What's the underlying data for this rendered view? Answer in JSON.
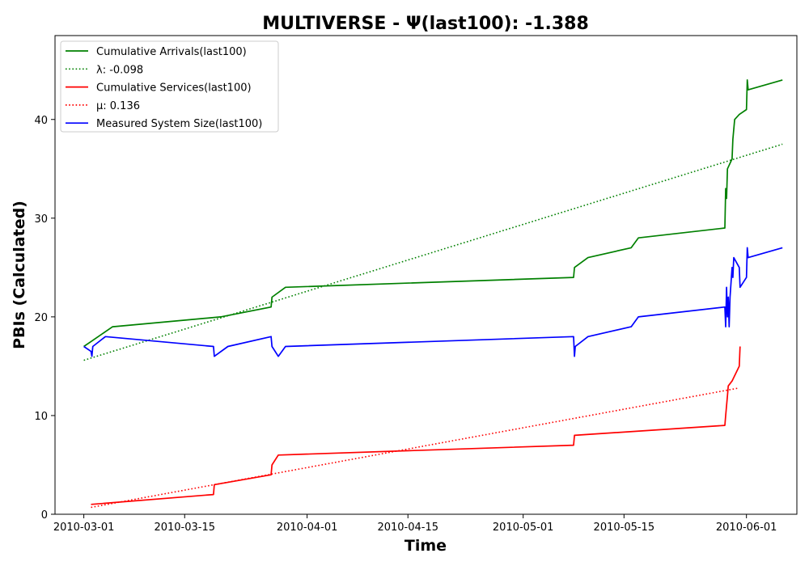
{
  "chart_data": {
    "type": "line",
    "title": "MULTIVERSE -  Ψ(last100): -1.388",
    "xlabel": "Time",
    "ylabel": "PBIs (Calculated)",
    "x_type": "date",
    "xlim": [
      "2010-02-25",
      "2010-06-08"
    ],
    "ylim": [
      0,
      48.5
    ],
    "x_ticks": [
      "2010-03-01",
      "2010-03-15",
      "2010-04-01",
      "2010-04-15",
      "2010-05-01",
      "2010-05-15",
      "2010-06-01"
    ],
    "y_ticks": [
      0,
      10,
      20,
      30,
      40
    ],
    "grid": false,
    "legend_position": "top-left",
    "series": [
      {
        "name": "Cumulative Arrivals(last100)",
        "color": "#008000",
        "style": "solid",
        "points": [
          [
            "2010-03-01",
            17
          ],
          [
            "2010-03-02",
            17.5
          ],
          [
            "2010-03-03",
            18
          ],
          [
            "2010-03-04",
            18.5
          ],
          [
            "2010-03-05",
            19
          ],
          [
            "2010-03-20",
            20
          ],
          [
            "2010-03-27",
            21
          ],
          [
            "2010-03-27",
            22
          ],
          [
            "2010-03-29",
            23
          ],
          [
            "2010-05-08",
            24
          ],
          [
            "2010-05-08",
            25
          ],
          [
            "2010-05-10",
            26
          ],
          [
            "2010-05-16",
            27
          ],
          [
            "2010-05-17",
            28
          ],
          [
            "2010-05-29",
            29
          ],
          [
            "2010-05-29",
            33
          ],
          [
            "2010-05-29",
            32
          ],
          [
            "2010-05-29",
            35
          ],
          [
            "2010-05-30",
            36
          ],
          [
            "2010-05-30",
            38
          ],
          [
            "2010-05-30",
            39
          ],
          [
            "2010-05-30",
            40
          ],
          [
            "2010-05-31",
            40.5
          ],
          [
            "2010-06-01",
            41
          ],
          [
            "2010-06-01",
            44
          ],
          [
            "2010-06-01",
            43
          ],
          [
            "2010-06-06",
            44
          ]
        ]
      },
      {
        "name": "λ: -0.098",
        "color": "#008000",
        "style": "dotted",
        "points": [
          [
            "2010-03-01",
            15.6
          ],
          [
            "2010-06-06",
            37.5
          ]
        ]
      },
      {
        "name": "Cumulative Services(last100)",
        "color": "#ff0000",
        "style": "solid",
        "points": [
          [
            "2010-03-02",
            1
          ],
          [
            "2010-03-19",
            2
          ],
          [
            "2010-03-19",
            3
          ],
          [
            "2010-03-27",
            4
          ],
          [
            "2010-03-27",
            5
          ],
          [
            "2010-03-28",
            6
          ],
          [
            "2010-05-08",
            7
          ],
          [
            "2010-05-08",
            8
          ],
          [
            "2010-05-29",
            9
          ],
          [
            "2010-05-29",
            10
          ],
          [
            "2010-05-29",
            11
          ],
          [
            "2010-05-29",
            12
          ],
          [
            "2010-05-29",
            13
          ],
          [
            "2010-05-30",
            13.5
          ],
          [
            "2010-05-31",
            15
          ],
          [
            "2010-05-31",
            17
          ]
        ]
      },
      {
        "name": "μ: 0.136",
        "color": "#ff0000",
        "style": "dotted",
        "points": [
          [
            "2010-03-02",
            0.7
          ],
          [
            "2010-05-31",
            12.8
          ]
        ]
      },
      {
        "name": "Measured System Size(last100)",
        "color": "#0000ff",
        "style": "solid",
        "points": [
          [
            "2010-03-01",
            17
          ],
          [
            "2010-03-02",
            16.5
          ],
          [
            "2010-03-02",
            16
          ],
          [
            "2010-03-02",
            17
          ],
          [
            "2010-03-04",
            18
          ],
          [
            "2010-03-19",
            17
          ],
          [
            "2010-03-19",
            16
          ],
          [
            "2010-03-21",
            17
          ],
          [
            "2010-03-27",
            18
          ],
          [
            "2010-03-27",
            17
          ],
          [
            "2010-03-28",
            16
          ],
          [
            "2010-03-29",
            17
          ],
          [
            "2010-05-08",
            18
          ],
          [
            "2010-05-08",
            16
          ],
          [
            "2010-05-08",
            17
          ],
          [
            "2010-05-10",
            18
          ],
          [
            "2010-05-16",
            19
          ],
          [
            "2010-05-17",
            20
          ],
          [
            "2010-05-29",
            21
          ],
          [
            "2010-05-29",
            19
          ],
          [
            "2010-05-29",
            23
          ],
          [
            "2010-05-29",
            20
          ],
          [
            "2010-05-29",
            22
          ],
          [
            "2010-05-29",
            19
          ],
          [
            "2010-05-29",
            22
          ],
          [
            "2010-05-30",
            25
          ],
          [
            "2010-05-30",
            24
          ],
          [
            "2010-05-30",
            26
          ],
          [
            "2010-05-31",
            25
          ],
          [
            "2010-05-31",
            23
          ],
          [
            "2010-06-01",
            24
          ],
          [
            "2010-06-01",
            27
          ],
          [
            "2010-06-01",
            26
          ],
          [
            "2010-06-06",
            27
          ]
        ]
      }
    ]
  }
}
